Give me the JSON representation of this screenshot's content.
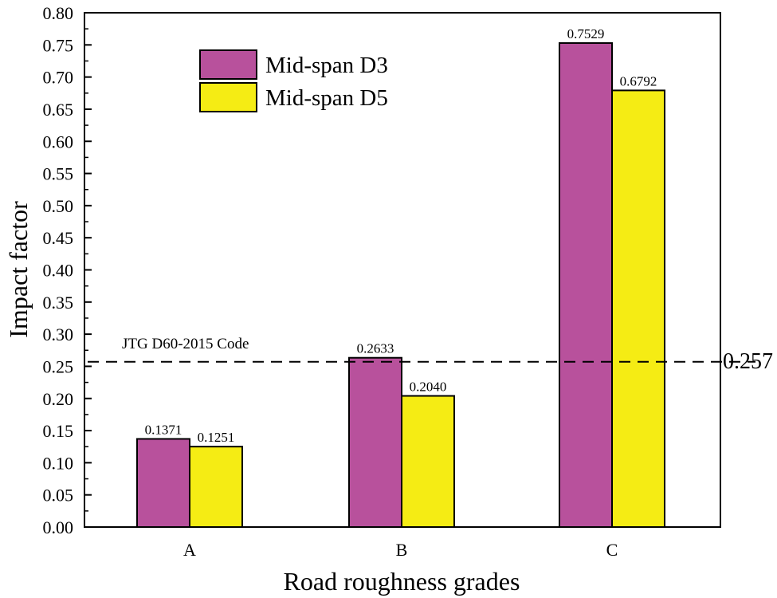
{
  "chart_data": {
    "type": "bar",
    "title": "",
    "xlabel": "Road roughness grades",
    "ylabel": "Impact factor",
    "categories": [
      "A",
      "B",
      "C"
    ],
    "series": [
      {
        "name": "Mid-span D3",
        "color": "#b8519c",
        "values": [
          0.1371,
          0.2633,
          0.7529
        ],
        "labels": [
          "0.1371",
          "0.2633",
          "0.7529"
        ]
      },
      {
        "name": "Mid-span D5",
        "color": "#f5ec14",
        "values": [
          0.1251,
          0.204,
          0.6792
        ],
        "labels": [
          "0.1251",
          "0.2040",
          "0.6792"
        ]
      }
    ],
    "ylim": [
      0,
      0.8
    ],
    "yticks": [
      "0.00",
      "0.05",
      "0.10",
      "0.15",
      "0.20",
      "0.25",
      "0.30",
      "0.35",
      "0.40",
      "0.45",
      "0.50",
      "0.55",
      "0.60",
      "0.65",
      "0.70",
      "0.75",
      "0.80"
    ],
    "reference_line": {
      "value": 0.257,
      "label": "0.257",
      "note": "JTG D60-2015 Code",
      "style": "dashed"
    },
    "legend_position": "top-left",
    "grid": false
  }
}
